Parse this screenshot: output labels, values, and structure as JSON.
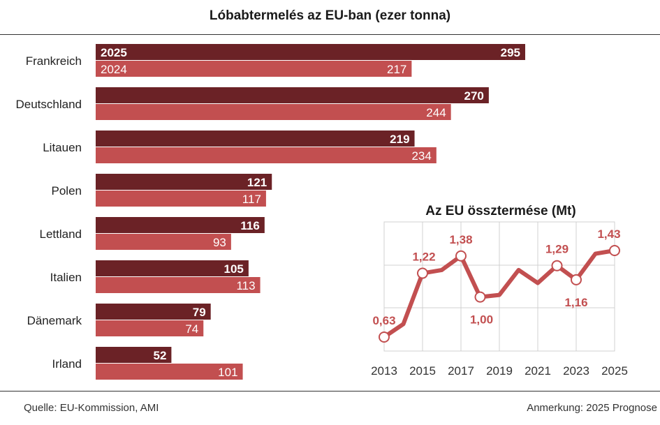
{
  "title": "Lóbabtermelés az EU-ban (ezer tonna)",
  "footer": {
    "source": "Quelle:  EU-Kommission, AMI",
    "note": "Anmerkung: 2025 Prognose"
  },
  "colors": {
    "series_2025": "#6b2226",
    "series_2024": "#c24f50",
    "line": "#c24f50",
    "grid": "#d0d0d0"
  },
  "chart_data": [
    {
      "type": "bar",
      "orientation": "horizontal",
      "title": "Lóbabtermelés az EU-ban (ezer tonna)",
      "categories": [
        "Frankreich",
        "Deutschland",
        "Litauen",
        "Polen",
        "Lettland",
        "Italien",
        "Dänemark",
        "Irland"
      ],
      "series": [
        {
          "name": "2025",
          "values": [
            295,
            270,
            219,
            121,
            116,
            105,
            79,
            52
          ]
        },
        {
          "name": "2024",
          "values": [
            217,
            244,
            234,
            117,
            93,
            113,
            74,
            101
          ]
        }
      ],
      "xlim": [
        0,
        310
      ]
    },
    {
      "type": "line",
      "title": "Az EU össztermése (Mt)",
      "x": [
        2013,
        2014,
        2015,
        2016,
        2017,
        2018,
        2019,
        2020,
        2021,
        2022,
        2023,
        2024,
        2025
      ],
      "y": [
        0.63,
        0.75,
        1.22,
        1.25,
        1.38,
        1.0,
        1.02,
        1.25,
        1.13,
        1.29,
        1.16,
        1.4,
        1.43
      ],
      "labeled_points": [
        {
          "x": 2013,
          "label": "0,63"
        },
        {
          "x": 2015,
          "label": "1,22"
        },
        {
          "x": 2017,
          "label": "1,38"
        },
        {
          "x": 2018,
          "label": "1,00"
        },
        {
          "x": 2022,
          "label": "1,29"
        },
        {
          "x": 2023,
          "label": "1,16"
        },
        {
          "x": 2025,
          "label": "1,43"
        }
      ],
      "xticks": [
        "2013",
        "2015",
        "2017",
        "2019",
        "2021",
        "2023",
        "2025"
      ],
      "ylim": [
        0.5,
        1.75
      ],
      "grid": true
    }
  ]
}
